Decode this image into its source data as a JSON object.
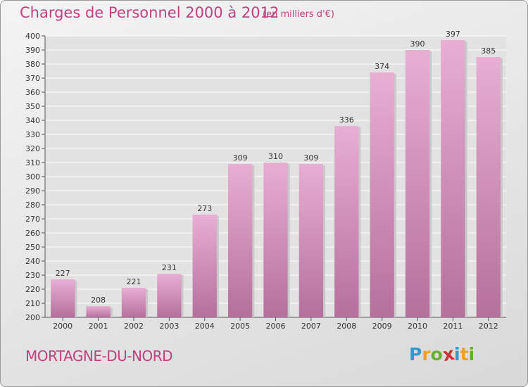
{
  "title": "Charges de Personnel 2000 à 2012",
  "subtitle": "(en milliers d'€)",
  "commune": "MORTAGNE-DU-NORD",
  "logo": {
    "text": "Proxiti",
    "letters": [
      "P",
      "r",
      "o",
      "x",
      "i",
      "t",
      "i"
    ],
    "colors": [
      "#3399cc",
      "#f0a020",
      "#66b030",
      "#cc3333",
      "#3399cc",
      "#f0a020",
      "#66b030"
    ]
  },
  "colors": {
    "bar_light": "#e8aed3",
    "bar_dark": "#b5709c",
    "text_accent": "#c04080"
  },
  "chart_data": {
    "type": "bar",
    "categories": [
      "2000",
      "2001",
      "2002",
      "2003",
      "2004",
      "2005",
      "2006",
      "2007",
      "2008",
      "2009",
      "2010",
      "2011",
      "2012"
    ],
    "values": [
      227,
      208,
      221,
      231,
      273,
      309,
      310,
      309,
      336,
      374,
      390,
      397,
      385
    ],
    "ylim": [
      200,
      400
    ],
    "yticks": [
      200,
      210,
      220,
      230,
      240,
      250,
      260,
      270,
      280,
      290,
      300,
      310,
      320,
      330,
      340,
      350,
      360,
      370,
      380,
      390,
      400
    ],
    "grid": true
  }
}
